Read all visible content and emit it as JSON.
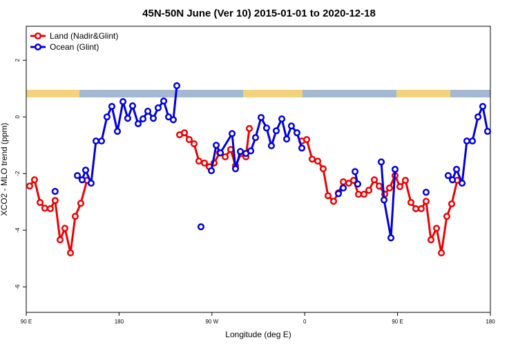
{
  "chart_data": {
    "type": "line",
    "title": "45N-50N June (Ver 10)   2015-01-01 to 2020-12-18",
    "x_label": "Longitude (deg E)",
    "y_label": "XCO2 - MLO trend (ppm)",
    "xlim": [
      90,
      540
    ],
    "ylim": [
      -6.9,
      3.2
    ],
    "xticks": [
      {
        "value": 90,
        "label": "90 E"
      },
      180,
      {
        "value": 270,
        "label": "90 W"
      },
      {
        "value": 360,
        "label": "0"
      },
      {
        "value": 450,
        "label": "90 E"
      },
      {
        "value": 540,
        "label": "180"
      }
    ],
    "yticks": [
      -6,
      -4,
      -2,
      0,
      2
    ],
    "legend": "top-left",
    "series": [
      {
        "name": "Land (Nadir&Glint)",
        "color": "#ee0000",
        "x": [
          93.3,
          98,
          103.4,
          108,
          113.4,
          118,
          122.8,
          127.5,
          132.9,
          137.5,
          142.9,
          148.9,
          null,
          238.7,
          243.4,
          248,
          252.7,
          257.4,
          262.8,
          267.5,
          272.1,
          277.5,
          282.9,
          288.2,
          292.9,
          298.3,
          303,
          306.3,
          null,
          357.2,
          361.9,
          367.2,
          372.6,
          377.9,
          382.6,
          388,
          392.7,
          397.4,
          402.7,
          407.4,
          412.1,
          417.5,
          422.2,
          427.5,
          432.2,
          437.6,
          442.2,
          447.6,
          452.3,
          457.6,
          463,
          467.7,
          473,
          477.7,
          482.4,
          487.8,
          492.5,
          497.8,
          502.5,
          507.9
        ],
        "values": [
          -2.44,
          -2.22,
          -3.02,
          -3.22,
          -3.24,
          -2.95,
          -4.34,
          -3.93,
          -4.8,
          -3.51,
          -3.05,
          -2.24,
          null,
          -0.63,
          -0.56,
          -0.8,
          -0.95,
          -1.56,
          -1.63,
          -1.76,
          -1.63,
          -1.27,
          -1.41,
          -1.15,
          -1.73,
          -1.29,
          -1.41,
          -0.41,
          null,
          -0.85,
          -0.8,
          -1.49,
          -1.56,
          -1.83,
          -2.78,
          -2.98,
          -2.68,
          -2.29,
          -2.34,
          -2.24,
          -2.73,
          -2.73,
          -2.59,
          -2.22,
          -2.44,
          -2.73,
          -2.51,
          -2.07,
          -2.46,
          -2.24,
          -3.02,
          -3.24,
          -3.24,
          -2.98,
          -4.34,
          -3.93,
          -4.8,
          -3.51,
          -3.07,
          -2.24
        ]
      },
      {
        "name": "Ocean (Glint)",
        "color": "#0000dd",
        "x": [
          118,
          null,
          139.6,
          144.2,
          147.6,
          152.9,
          157.6,
          163,
          168.3,
          173,
          178.4,
          183.8,
          188.4,
          193.1,
          198.5,
          203.2,
          207.9,
          213.2,
          217.9,
          223.3,
          228,
          232.6,
          236,
          null,
          259.4,
          null,
          269.5,
          274.2,
          278.2,
          289.6,
          292.9,
          297.6,
          303,
          307.7,
          312.3,
          317.7,
          323,
          327.7,
          332.4,
          337.8,
          342.5,
          347.1,
          352.5,
          357.2,
          null,
          392.7,
          397.4,
          null,
          408.8,
          411.4,
          null,
          434.2,
          436.9,
          443.6,
          447.6,
          null,
          477.7,
          null,
          499.1,
          503.2,
          507.2,
          512.6,
          517.2,
          522.6,
          528,
          532.6,
          537.3
        ],
        "values": [
          -2.63,
          null,
          -2.07,
          -2.22,
          -1.88,
          -2.34,
          -0.85,
          -0.85,
          0,
          0.37,
          -0.51,
          0.54,
          -0.05,
          0.39,
          -0.24,
          -0.07,
          0.2,
          -0.05,
          0.32,
          0.56,
          0,
          -0.1,
          1.1,
          null,
          -3.88,
          null,
          -1.9,
          -1.0,
          -1.27,
          -0.59,
          -1.83,
          -1.22,
          -1.29,
          -1.2,
          -0.73,
          -0.02,
          -0.39,
          -1.02,
          -0.49,
          -0.07,
          -0.78,
          -0.32,
          -0.56,
          -1.1,
          null,
          -2.71,
          -2.51,
          null,
          -1.93,
          -2.37,
          null,
          -1.59,
          -2.93,
          -4.27,
          -1.85,
          null,
          -2.66,
          null,
          -2.07,
          -2.22,
          -1.85,
          -2.34,
          -0.85,
          -0.85,
          0,
          0.37,
          -0.51
        ]
      }
    ]
  }
}
